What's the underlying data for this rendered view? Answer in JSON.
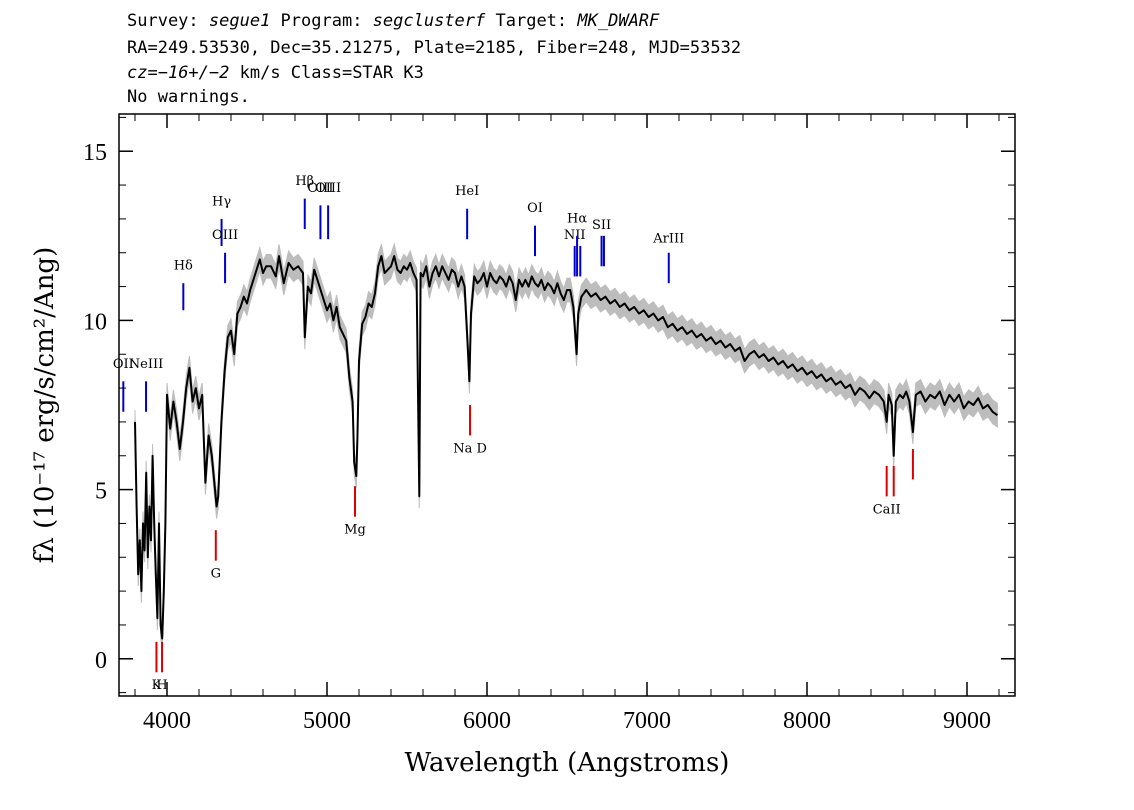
{
  "header": {
    "line1": {
      "survey_label": "Survey: ",
      "survey": "segue1",
      "program_label": " Program: ",
      "program": "segclusterf",
      "target_label": " Target: ",
      "target": "MK_DWARF"
    },
    "line2": "RA=249.53530, Dec=35.21275, Plate=2185, Fiber=248, MJD=53532",
    "line3": {
      "cz_label": "cz",
      "cz_value": "=−16+/−2",
      "cz_rest": " km/s Class=STAR K3"
    },
    "line4": "No warnings."
  },
  "colors": {
    "spectrum": "#000000",
    "error_band": "#bdbdbd",
    "emission_line": "#0000cc",
    "absorption_line": "#dd0000"
  },
  "chart_data": {
    "type": "line",
    "xlabel": "Wavelength (Angstroms)",
    "ylabel": "fλ (10⁻¹⁷ erg/s/cm²/Ang)",
    "xlim": [
      3700,
      9300
    ],
    "ylim": [
      -1.1,
      16.1
    ],
    "x_ticks": [
      4000,
      5000,
      6000,
      7000,
      8000,
      9000
    ],
    "y_ticks": [
      0,
      5,
      10,
      15
    ],
    "series": [
      {
        "points": [
          [
            3800,
            7.0
          ],
          [
            3810,
            4.5
          ],
          [
            3820,
            2.5
          ],
          [
            3830,
            3.5
          ],
          [
            3840,
            2.0
          ],
          [
            3850,
            4.0
          ],
          [
            3860,
            3.2
          ],
          [
            3870,
            5.5
          ],
          [
            3880,
            3.0
          ],
          [
            3890,
            4.5
          ],
          [
            3900,
            3.5
          ],
          [
            3910,
            6.0
          ],
          [
            3920,
            4.0
          ],
          [
            3930,
            2.5
          ],
          [
            3940,
            1.2
          ],
          [
            3950,
            4.0
          ],
          [
            3960,
            1.0
          ],
          [
            3970,
            0.6
          ],
          [
            3980,
            2.0
          ],
          [
            3990,
            4.0
          ],
          [
            4000,
            7.8
          ],
          [
            4020,
            6.8
          ],
          [
            4040,
            7.6
          ],
          [
            4060,
            7.0
          ],
          [
            4080,
            6.2
          ],
          [
            4100,
            7.0
          ],
          [
            4120,
            8.0
          ],
          [
            4140,
            8.6
          ],
          [
            4160,
            7.6
          ],
          [
            4180,
            8.0
          ],
          [
            4200,
            7.4
          ],
          [
            4220,
            7.8
          ],
          [
            4240,
            5.2
          ],
          [
            4260,
            6.6
          ],
          [
            4280,
            6.0
          ],
          [
            4300,
            5.0
          ],
          [
            4310,
            4.5
          ],
          [
            4320,
            4.8
          ],
          [
            4340,
            7.0
          ],
          [
            4360,
            8.5
          ],
          [
            4380,
            9.5
          ],
          [
            4400,
            9.7
          ],
          [
            4420,
            9.0
          ],
          [
            4440,
            10.2
          ],
          [
            4460,
            10.4
          ],
          [
            4480,
            10.7
          ],
          [
            4500,
            10.5
          ],
          [
            4520,
            10.9
          ],
          [
            4540,
            11.2
          ],
          [
            4560,
            11.5
          ],
          [
            4580,
            11.8
          ],
          [
            4600,
            11.4
          ],
          [
            4620,
            11.6
          ],
          [
            4650,
            11.6
          ],
          [
            4680,
            11.3
          ],
          [
            4700,
            11.9
          ],
          [
            4730,
            11.1
          ],
          [
            4760,
            11.7
          ],
          [
            4790,
            11.5
          ],
          [
            4820,
            11.6
          ],
          [
            4850,
            11.4
          ],
          [
            4861,
            9.5
          ],
          [
            4880,
            11.0
          ],
          [
            4900,
            10.8
          ],
          [
            4920,
            11.5
          ],
          [
            4940,
            11.2
          ],
          [
            4960,
            10.9
          ],
          [
            4980,
            10.6
          ],
          [
            5000,
            10.3
          ],
          [
            5020,
            10.5
          ],
          [
            5040,
            10.0
          ],
          [
            5060,
            10.4
          ],
          [
            5080,
            9.8
          ],
          [
            5100,
            9.6
          ],
          [
            5120,
            9.4
          ],
          [
            5140,
            8.3
          ],
          [
            5160,
            7.6
          ],
          [
            5170,
            5.8
          ],
          [
            5183,
            5.4
          ],
          [
            5190,
            6.5
          ],
          [
            5200,
            8.8
          ],
          [
            5220,
            9.9
          ],
          [
            5240,
            10.1
          ],
          [
            5260,
            10.5
          ],
          [
            5280,
            10.4
          ],
          [
            5300,
            10.8
          ],
          [
            5320,
            11.6
          ],
          [
            5340,
            11.9
          ],
          [
            5360,
            11.4
          ],
          [
            5380,
            11.5
          ],
          [
            5400,
            11.6
          ],
          [
            5420,
            11.9
          ],
          [
            5440,
            11.5
          ],
          [
            5460,
            11.4
          ],
          [
            5480,
            11.6
          ],
          [
            5500,
            11.5
          ],
          [
            5520,
            11.7
          ],
          [
            5540,
            11.4
          ],
          [
            5560,
            11.2
          ],
          [
            5577,
            4.8
          ],
          [
            5585,
            11.4
          ],
          [
            5600,
            11.3
          ],
          [
            5620,
            11.6
          ],
          [
            5640,
            11.0
          ],
          [
            5660,
            11.4
          ],
          [
            5680,
            11.6
          ],
          [
            5700,
            11.3
          ],
          [
            5720,
            11.6
          ],
          [
            5740,
            11.4
          ],
          [
            5760,
            11.2
          ],
          [
            5780,
            11.5
          ],
          [
            5800,
            11.4
          ],
          [
            5820,
            11.0
          ],
          [
            5840,
            11.3
          ],
          [
            5860,
            11.0
          ],
          [
            5880,
            9.2
          ],
          [
            5890,
            8.2
          ],
          [
            5900,
            10.2
          ],
          [
            5920,
            11.3
          ],
          [
            5940,
            11.1
          ],
          [
            5960,
            11.2
          ],
          [
            5980,
            11.4
          ],
          [
            6000,
            11.0
          ],
          [
            6020,
            11.4
          ],
          [
            6040,
            11.2
          ],
          [
            6060,
            11.1
          ],
          [
            6080,
            11.3
          ],
          [
            6100,
            11.2
          ],
          [
            6120,
            11.0
          ],
          [
            6140,
            11.3
          ],
          [
            6160,
            11.1
          ],
          [
            6180,
            10.6
          ],
          [
            6200,
            11.2
          ],
          [
            6220,
            11.0
          ],
          [
            6240,
            11.2
          ],
          [
            6260,
            11.0
          ],
          [
            6280,
            11.3
          ],
          [
            6300,
            11.1
          ],
          [
            6320,
            11.0
          ],
          [
            6340,
            11.2
          ],
          [
            6360,
            10.9
          ],
          [
            6380,
            11.1
          ],
          [
            6400,
            11.0
          ],
          [
            6420,
            10.8
          ],
          [
            6440,
            11.1
          ],
          [
            6460,
            10.8
          ],
          [
            6480,
            10.6
          ],
          [
            6500,
            10.9
          ],
          [
            6520,
            10.9
          ],
          [
            6540,
            10.4
          ],
          [
            6560,
            9.0
          ],
          [
            6570,
            10.2
          ],
          [
            6590,
            10.7
          ],
          [
            6620,
            10.9
          ],
          [
            6650,
            10.7
          ],
          [
            6680,
            10.8
          ],
          [
            6710,
            10.6
          ],
          [
            6740,
            10.7
          ],
          [
            6770,
            10.5
          ],
          [
            6800,
            10.6
          ],
          [
            6830,
            10.4
          ],
          [
            6860,
            10.5
          ],
          [
            6890,
            10.3
          ],
          [
            6920,
            10.4
          ],
          [
            6950,
            10.2
          ],
          [
            6980,
            10.3
          ],
          [
            7010,
            10.1
          ],
          [
            7040,
            10.2
          ],
          [
            7070,
            10.0
          ],
          [
            7100,
            10.1
          ],
          [
            7130,
            9.8
          ],
          [
            7160,
            9.9
          ],
          [
            7190,
            9.7
          ],
          [
            7220,
            9.8
          ],
          [
            7250,
            9.6
          ],
          [
            7280,
            9.7
          ],
          [
            7310,
            9.5
          ],
          [
            7340,
            9.6
          ],
          [
            7370,
            9.4
          ],
          [
            7400,
            9.5
          ],
          [
            7430,
            9.3
          ],
          [
            7460,
            9.4
          ],
          [
            7490,
            9.2
          ],
          [
            7520,
            9.3
          ],
          [
            7550,
            9.1
          ],
          [
            7580,
            9.2
          ],
          [
            7610,
            8.8
          ],
          [
            7640,
            9.0
          ],
          [
            7670,
            9.1
          ],
          [
            7700,
            8.9
          ],
          [
            7730,
            9.0
          ],
          [
            7760,
            8.8
          ],
          [
            7790,
            8.9
          ],
          [
            7820,
            8.7
          ],
          [
            7850,
            8.8
          ],
          [
            7880,
            8.6
          ],
          [
            7910,
            8.7
          ],
          [
            7940,
            8.5
          ],
          [
            7970,
            8.6
          ],
          [
            8000,
            8.4
          ],
          [
            8030,
            8.5
          ],
          [
            8060,
            8.3
          ],
          [
            8090,
            8.4
          ],
          [
            8120,
            8.2
          ],
          [
            8150,
            8.3
          ],
          [
            8180,
            8.1
          ],
          [
            8210,
            8.2
          ],
          [
            8240,
            8.0
          ],
          [
            8270,
            8.1
          ],
          [
            8300,
            7.8
          ],
          [
            8330,
            8.0
          ],
          [
            8360,
            7.9
          ],
          [
            8390,
            7.7
          ],
          [
            8420,
            7.9
          ],
          [
            8450,
            7.8
          ],
          [
            8480,
            7.6
          ],
          [
            8498,
            7.0
          ],
          [
            8510,
            7.8
          ],
          [
            8530,
            7.5
          ],
          [
            8542,
            6.0
          ],
          [
            8555,
            7.6
          ],
          [
            8580,
            7.8
          ],
          [
            8600,
            7.7
          ],
          [
            8620,
            7.9
          ],
          [
            8640,
            7.6
          ],
          [
            8662,
            6.7
          ],
          [
            8680,
            7.8
          ],
          [
            8710,
            7.9
          ],
          [
            8740,
            7.6
          ],
          [
            8770,
            7.8
          ],
          [
            8800,
            7.7
          ],
          [
            8830,
            7.9
          ],
          [
            8860,
            7.5
          ],
          [
            8890,
            7.8
          ],
          [
            8920,
            7.6
          ],
          [
            8950,
            7.8
          ],
          [
            8980,
            7.4
          ],
          [
            9010,
            7.6
          ],
          [
            9040,
            7.5
          ],
          [
            9070,
            7.7
          ],
          [
            9100,
            7.4
          ],
          [
            9130,
            7.5
          ],
          [
            9160,
            7.3
          ],
          [
            9190,
            7.2
          ]
        ]
      }
    ],
    "emission_lines": [
      {
        "label": "OII",
        "x": 3727,
        "y0": 7.3,
        "y1": 8.2,
        "label_y": 8.6
      },
      {
        "label": "NeIII",
        "x": 3869,
        "y0": 7.3,
        "y1": 8.2,
        "label_y": 8.6
      },
      {
        "label": "Hδ",
        "x": 4102,
        "y0": 10.3,
        "y1": 11.1,
        "label_y": 11.5
      },
      {
        "label": "Hγ",
        "x": 4341,
        "y0": 12.2,
        "y1": 13.0,
        "label_y": 13.4
      },
      {
        "label": "OIII",
        "x": 4363,
        "y0": 11.1,
        "y1": 12.0,
        "label_y": 12.4
      },
      {
        "label": "Hβ",
        "x": 4861,
        "y0": 12.7,
        "y1": 13.6,
        "label_y": 14.0
      },
      {
        "label": "OIII",
        "x": 4959,
        "y0": 12.4,
        "y1": 13.4,
        "label_y": 13.8
      },
      {
        "label": "OIII",
        "x": 5007,
        "y0": 12.4,
        "y1": 13.4,
        "label_y": 13.8
      },
      {
        "label": "HeI",
        "x": 5876,
        "y0": 12.4,
        "y1": 13.3,
        "label_y": 13.7
      },
      {
        "label": "OI",
        "x": 6300,
        "y0": 11.9,
        "y1": 12.8,
        "label_y": 13.2
      },
      {
        "label": "NII",
        "x": 6548,
        "y0": 11.3,
        "y1": 12.2,
        "label_y": 12.4
      },
      {
        "label": "Hα",
        "x": 6563,
        "y0": 11.3,
        "y1": 12.5,
        "label_y": 12.9
      },
      {
        "label": "NII",
        "x": 6583,
        "y0": 11.3,
        "y1": 12.2,
        "label_y": null
      },
      {
        "label": "SII",
        "x": 6716,
        "y0": 11.6,
        "y1": 12.5,
        "label_y": 12.7
      },
      {
        "label": "SII",
        "x": 6731,
        "y0": 11.6,
        "y1": 12.5,
        "label_y": null
      },
      {
        "label": "ArIII",
        "x": 7136,
        "y0": 11.1,
        "y1": 12.0,
        "label_y": 12.3
      }
    ],
    "absorption_lines": [
      {
        "label": "K",
        "x": 3934,
        "y0": -0.4,
        "y1": 0.5,
        "label_y": -0.9
      },
      {
        "label": "H",
        "x": 3969,
        "y0": -0.4,
        "y1": 0.5,
        "label_y": -0.9
      },
      {
        "label": "G",
        "x": 4305,
        "y0": 2.9,
        "y1": 3.8,
        "label_y": 2.4
      },
      {
        "label": "Mg",
        "x": 5175,
        "y0": 4.2,
        "y1": 5.1,
        "label_y": 3.7
      },
      {
        "label": "Na D",
        "x": 5894,
        "y0": 6.6,
        "y1": 7.5,
        "label_y": 6.1
      },
      {
        "label": "CaII",
        "x": 8498,
        "y0": 4.8,
        "y1": 5.7,
        "label_y": 4.3
      },
      {
        "label": "",
        "x": 8542,
        "y0": 4.8,
        "y1": 5.7,
        "label_y": null
      },
      {
        "label": "",
        "x": 8662,
        "y0": 5.3,
        "y1": 6.2,
        "label_y": null
      }
    ]
  }
}
